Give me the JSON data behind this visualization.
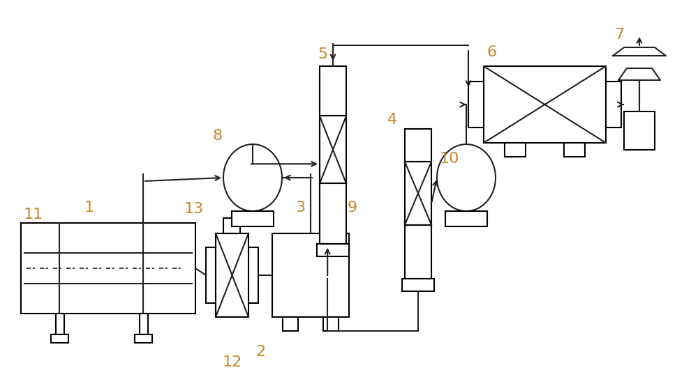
{
  "bg_color": "#ffffff",
  "line_color": "#231f20",
  "label_color": "#c8862a",
  "fig_width": 10.0,
  "fig_height": 5.54,
  "dpi": 100
}
